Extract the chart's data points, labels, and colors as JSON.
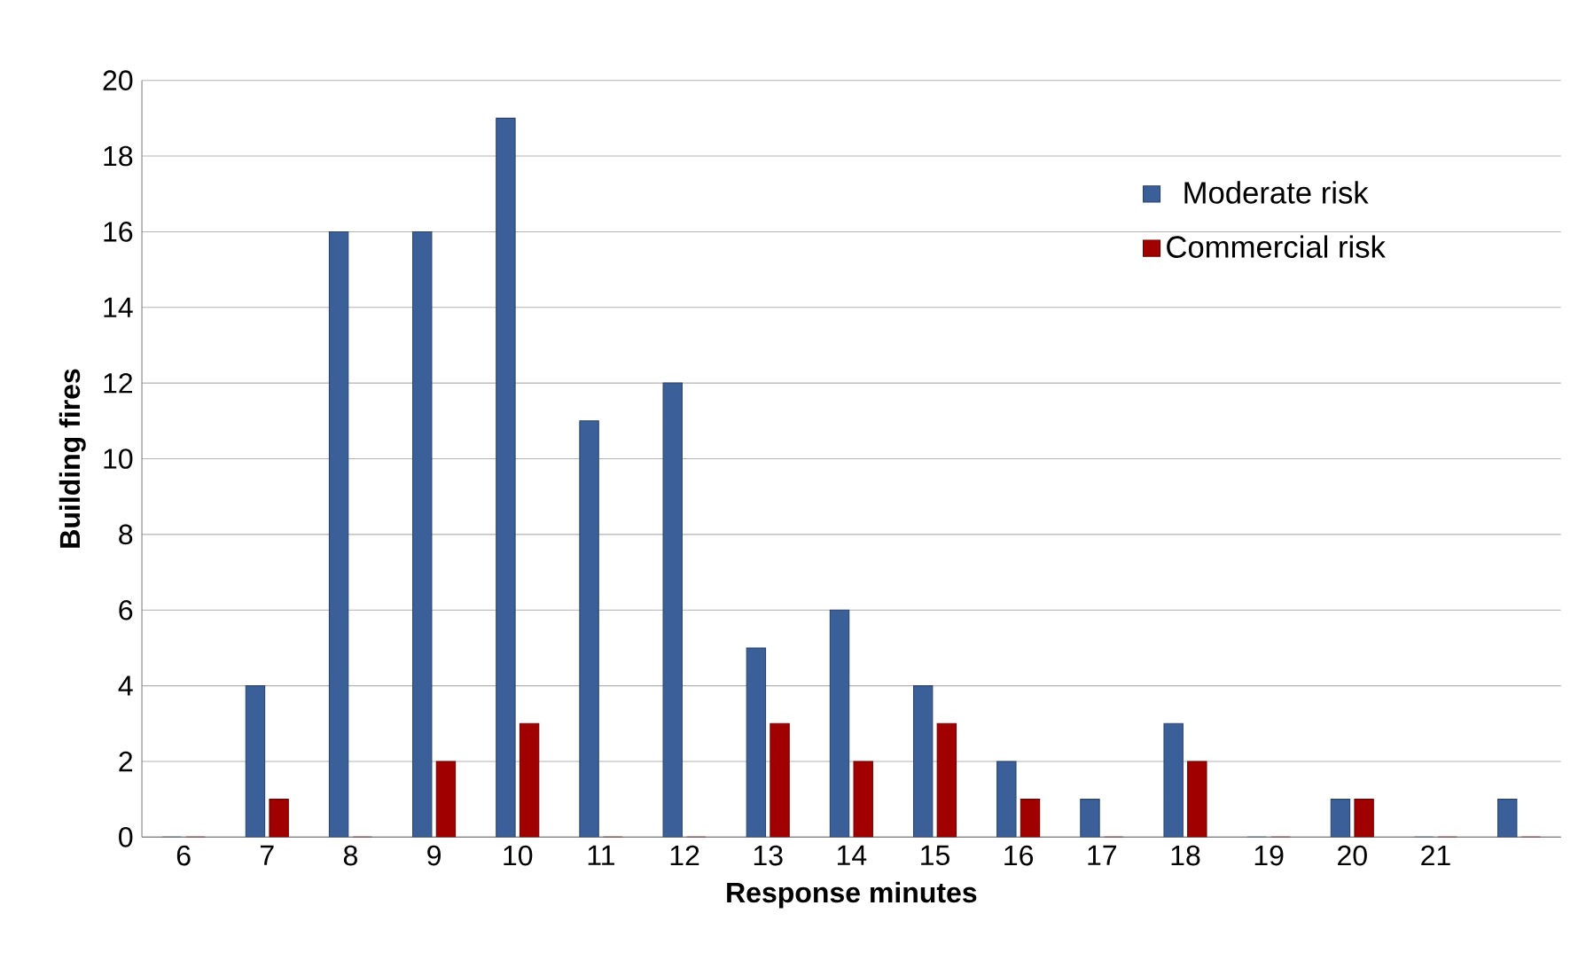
{
  "chart_data": {
    "type": "bar",
    "xlabel": "Response minutes",
    "ylabel": "Building fires",
    "categories": [
      "6",
      "7",
      "8",
      "9",
      "10",
      "11",
      "12",
      "13",
      "14",
      "15",
      "16",
      "17",
      "18",
      "19",
      "20",
      "21",
      null
    ],
    "series": [
      {
        "name": "Moderate risk",
        "color": "#3b5f99",
        "values": [
          0,
          4,
          16,
          16,
          19,
          11,
          12,
          5,
          6,
          4,
          2,
          1,
          3,
          0,
          1,
          0,
          1
        ]
      },
      {
        "name": "Commercial risk",
        "color": "#a00000",
        "values": [
          0,
          1,
          0,
          2,
          3,
          0,
          0,
          3,
          2,
          3,
          1,
          0,
          2,
          0,
          1,
          0,
          0
        ]
      }
    ],
    "ylim": [
      0,
      20
    ],
    "yticks": [
      0,
      2,
      4,
      6,
      8,
      10,
      12,
      14,
      16,
      18,
      20
    ],
    "grid": "y",
    "legend": "top right"
  }
}
